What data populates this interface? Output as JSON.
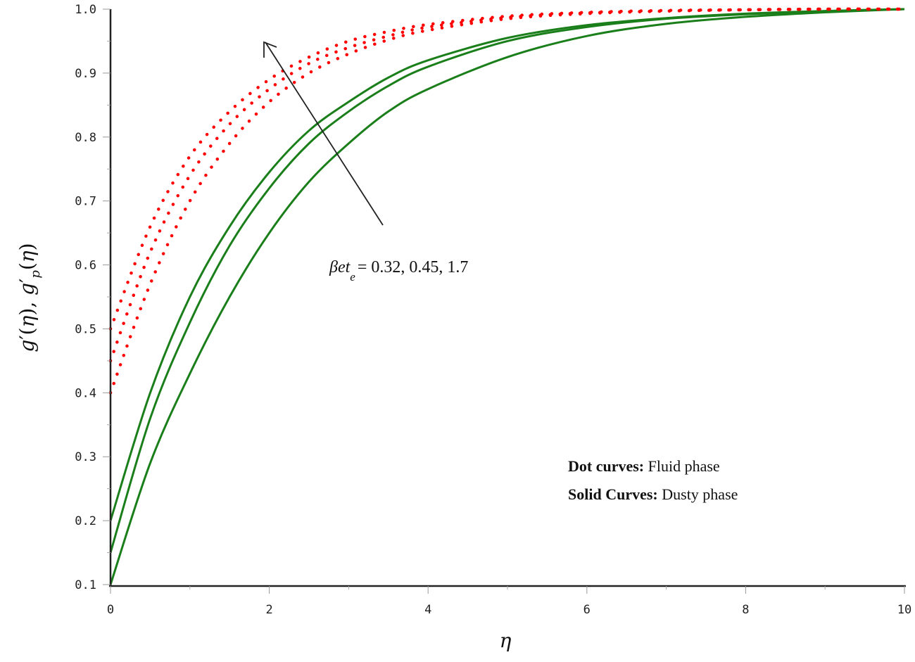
{
  "chart_data": {
    "type": "line",
    "title": "",
    "xlabel": "η",
    "ylabel": "g′(η), g′p(η)",
    "xlim": [
      0,
      10
    ],
    "ylim": [
      0.1,
      1.0
    ],
    "grid": false,
    "x_ticks": [
      "0",
      "2",
      "4",
      "6",
      "8",
      "10"
    ],
    "y_ticks": [
      "0.1",
      "0.2",
      "0.3",
      "0.4",
      "0.5",
      "0.6",
      "0.7",
      "0.8",
      "0.9",
      "1.0"
    ],
    "x": [
      0,
      0.5,
      1,
      1.5,
      2,
      2.5,
      3,
      3.5,
      4,
      5,
      6,
      7,
      8,
      9,
      10
    ],
    "series": [
      {
        "name": "Fluid phase g′(η), βet_e=1.7",
        "style": "dotted",
        "color": "#ff0000",
        "values": [
          0.5,
          0.66,
          0.77,
          0.84,
          0.89,
          0.925,
          0.95,
          0.965,
          0.976,
          0.989,
          0.995,
          0.998,
          0.999,
          1.0,
          1.0
        ]
      },
      {
        "name": "Fluid phase g′(η), βet_e=0.45",
        "style": "dotted",
        "color": "#ff0000",
        "values": [
          0.45,
          0.62,
          0.74,
          0.82,
          0.875,
          0.915,
          0.94,
          0.958,
          0.972,
          0.987,
          0.994,
          0.997,
          0.999,
          1.0,
          1.0
        ]
      },
      {
        "name": "Fluid phase g′(η), βet_e=0.32",
        "style": "dotted",
        "color": "#ff0000",
        "values": [
          0.4,
          0.57,
          0.7,
          0.79,
          0.855,
          0.9,
          0.93,
          0.952,
          0.967,
          0.985,
          0.993,
          0.997,
          0.999,
          1.0,
          1.0
        ]
      },
      {
        "name": "Dusty phase g′p(η), βet_e=1.7",
        "style": "solid",
        "color": "#1a7f1a",
        "values": [
          0.2,
          0.4,
          0.55,
          0.66,
          0.745,
          0.81,
          0.855,
          0.893,
          0.92,
          0.955,
          0.975,
          0.986,
          0.993,
          0.997,
          1.0
        ]
      },
      {
        "name": "Dusty phase g′p(η), βet_e=0.45",
        "style": "solid",
        "color": "#1a7f1a",
        "values": [
          0.15,
          0.36,
          0.51,
          0.63,
          0.72,
          0.79,
          0.84,
          0.88,
          0.91,
          0.95,
          0.972,
          0.985,
          0.992,
          0.997,
          1.0
        ]
      },
      {
        "name": "Dusty phase g′p(η), βet_e=0.32",
        "style": "solid",
        "color": "#1a7f1a",
        "values": [
          0.1,
          0.29,
          0.43,
          0.55,
          0.65,
          0.73,
          0.79,
          0.84,
          0.875,
          0.925,
          0.958,
          0.977,
          0.988,
          0.995,
          1.0
        ]
      }
    ],
    "annotations": [
      {
        "text": "βet_e = 0.32, 0.45, 1.7",
        "type": "arrow",
        "from": [
          3.4,
          0.67
        ],
        "to": [
          1.95,
          0.95
        ]
      }
    ],
    "legend": {
      "position": "lower right (inside plot)",
      "entries": [
        {
          "label_bold": "Dot curves:",
          "label": "Fluid phase"
        },
        {
          "label_bold": "Solid Curves:",
          "label": "Dusty phase"
        }
      ]
    }
  },
  "labels": {
    "xlabel": "η",
    "ylabel_part1": "g",
    "ylabel_full": "g′(η), g′p(η)",
    "annotation_beta": "βet",
    "annotation_sub": "e",
    "annotation_values": "= 0.32, 0.45, 1.7",
    "legend_dot_bold": "Dot curves:",
    "legend_dot_text": " Fluid phase",
    "legend_solid_bold": "Solid Curves:",
    "legend_solid_text": " Dusty phase"
  },
  "colors": {
    "fluid": "#ff0000",
    "dusty": "#1a7f1a",
    "axis": "#222222",
    "arrow": "#222222"
  }
}
